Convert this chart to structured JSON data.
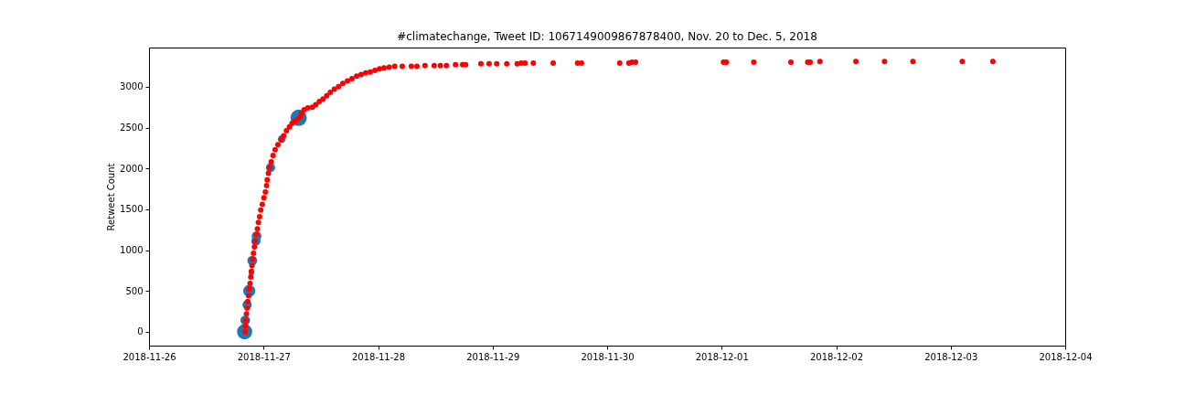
{
  "chart_data": {
    "type": "bubble",
    "title": "#climatechange, Tweet ID: 1067149009867878400, Nov. 20 to Dec. 5, 2018",
    "ylabel": "Retweet Count",
    "xlim": [
      "2018-11-26",
      "2018-12-04"
    ],
    "xticks": [
      "2018-11-26",
      "2018-11-27",
      "2018-11-28",
      "2018-11-29",
      "2018-11-30",
      "2018-12-01",
      "2018-12-02",
      "2018-12-03",
      "2018-12-04"
    ],
    "ylim": [
      -170,
      3480
    ],
    "yticks": [
      0,
      500,
      1000,
      1500,
      2000,
      2500,
      3000
    ],
    "grid": false,
    "legend": false,
    "marker": "circle",
    "series": [
      {
        "color": "#1f77b4",
        "x": [
          "2018-11-26T20:02",
          "2018-11-26T20:10",
          "2018-11-26T20:33",
          "2018-11-26T21:00",
          "2018-11-26T21:27",
          "2018-11-26T21:38",
          "2018-11-26T22:24",
          "2018-11-26T22:32",
          "2018-11-27T01:28",
          "2018-11-27T03:50",
          "2018-11-27T07:21"
        ],
        "values": [
          0,
          140,
          330,
          500,
          720,
          870,
          1110,
          1170,
          2010,
          2360,
          2620
        ],
        "sizes": [
          0.87,
          0.36,
          0.32,
          0.54,
          0.11,
          0.36,
          0.32,
          0.36,
          0.32,
          0.22,
          1
        ]
      },
      {
        "type": "scatter",
        "color": "#ff0000",
        "x": [
          "2018-11-26T20:10",
          "2018-11-26T20:14",
          "2018-11-26T20:18",
          "2018-11-26T20:25",
          "2018-11-26T20:33",
          "2018-11-26T20:41",
          "2018-11-26T20:52",
          "2018-11-26T21:00",
          "2018-11-26T21:11",
          "2018-11-26T21:19",
          "2018-11-26T21:27",
          "2018-11-26T21:34",
          "2018-11-26T21:46",
          "2018-11-26T21:53",
          "2018-11-26T22:05",
          "2018-11-26T22:16",
          "2018-11-26T22:32",
          "2018-11-26T22:43",
          "2018-11-26T22:55",
          "2018-11-26T23:10",
          "2018-11-26T23:25",
          "2018-11-26T23:45",
          "2018-11-27T00:04",
          "2018-11-27T00:23",
          "2018-11-27T00:38",
          "2018-11-27T00:46",
          "2018-11-27T01:01",
          "2018-11-27T01:17",
          "2018-11-27T01:36",
          "2018-11-27T01:59",
          "2018-11-27T02:26",
          "2018-11-27T03:00",
          "2018-11-27T03:39",
          "2018-11-27T04:13",
          "2018-11-27T04:48",
          "2018-11-27T05:26",
          "2018-11-27T05:57",
          "2018-11-27T06:35",
          "2018-11-27T07:13",
          "2018-11-27T07:44",
          "2018-11-27T07:59",
          "2018-11-27T08:30",
          "2018-11-27T09:16",
          "2018-11-27T10:14",
          "2018-11-27T10:56",
          "2018-11-27T11:42",
          "2018-11-27T12:28",
          "2018-11-27T13:14",
          "2018-11-27T14:00",
          "2018-11-27T14:50",
          "2018-11-27T15:43",
          "2018-11-27T16:37",
          "2018-11-27T17:35",
          "2018-11-27T18:32",
          "2018-11-27T19:30",
          "2018-11-27T20:27",
          "2018-11-27T21:25",
          "2018-11-27T22:22",
          "2018-11-27T23:20",
          "2018-11-28T00:17",
          "2018-11-28T01:15",
          "2018-11-28T02:20",
          "2018-11-28T03:29",
          "2018-11-28T05:04",
          "2018-11-28T06:58",
          "2018-11-28T08:08",
          "2018-11-28T09:51",
          "2018-11-28T11:46",
          "2018-11-28T13:03",
          "2018-11-28T14:19",
          "2018-11-28T16:14",
          "2018-11-28T17:43",
          "2018-11-28T18:21",
          "2018-11-28T21:33",
          "2018-11-28T23:16",
          "2018-11-29T00:52",
          "2018-11-29T02:58",
          "2018-11-29T05:09",
          "2018-11-29T05:59",
          "2018-11-29T06:48",
          "2018-11-29T08:32",
          "2018-11-29T12:42",
          "2018-11-29T17:48",
          "2018-11-29T18:38",
          "2018-11-30T02:38",
          "2018-11-30T04:33",
          "2018-11-30T05:11",
          "2018-11-30T05:57",
          "2018-12-01T00:23",
          "2018-12-01T00:59",
          "2018-12-01T06:44",
          "2018-12-01T14:31",
          "2018-12-01T18:02",
          "2018-12-01T18:33",
          "2018-12-01T20:36",
          "2018-12-02T04:08",
          "2018-12-02T10:08",
          "2018-12-02T16:05",
          "2018-12-03T02:26",
          "2018-12-03T08:50"
        ],
        "values": [
          0,
          70,
          140,
          220,
          290,
          370,
          440,
          520,
          590,
          670,
          740,
          810,
          890,
          960,
          1040,
          1110,
          1190,
          1260,
          1340,
          1410,
          1490,
          1560,
          1640,
          1710,
          1790,
          1860,
          1940,
          2010,
          2080,
          2160,
          2230,
          2290,
          2350,
          2400,
          2460,
          2510,
          2550,
          2580,
          2600,
          2640,
          2680,
          2720,
          2740,
          2750,
          2780,
          2820,
          2850,
          2890,
          2930,
          2970,
          3000,
          3040,
          3070,
          3100,
          3130,
          3150,
          3170,
          3180,
          3200,
          3220,
          3230,
          3240,
          3250,
          3250,
          3250,
          3250,
          3260,
          3260,
          3260,
          3260,
          3270,
          3270,
          3270,
          3280,
          3280,
          3280,
          3280,
          3280,
          3290,
          3290,
          3290,
          3290,
          3290,
          3290,
          3290,
          3290,
          3300,
          3300,
          3300,
          3300,
          3300,
          3300,
          3300,
          3300,
          3310,
          3310,
          3310,
          3310,
          3310,
          3310
        ]
      }
    ]
  }
}
